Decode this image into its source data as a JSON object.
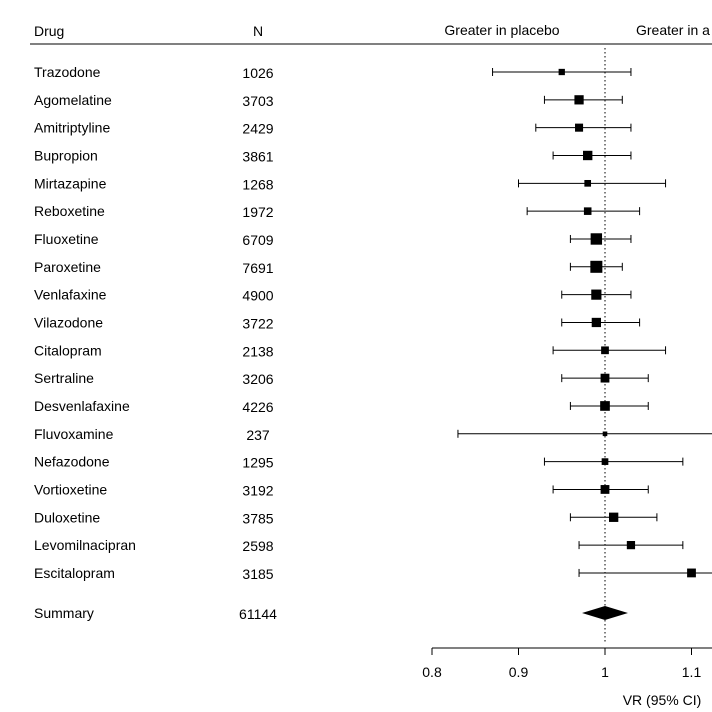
{
  "chart_data": {
    "type": "forest",
    "columns": {
      "drug": "Drug",
      "n": "N"
    },
    "directions": {
      "left": "Greater in placebo",
      "right": "Greater in a"
    },
    "xlabel": "VR (95% CI)",
    "xlim": [
      0.8,
      1.1
    ],
    "xticks": [
      0.8,
      0.9,
      1,
      1.1
    ],
    "reference_line": 1,
    "rows": [
      {
        "drug": "Trazodone",
        "n": "1026",
        "est": 0.95,
        "lo": 0.87,
        "hi": 1.03
      },
      {
        "drug": "Agomelatine",
        "n": "3703",
        "est": 0.97,
        "lo": 0.93,
        "hi": 1.02
      },
      {
        "drug": "Amitriptyline",
        "n": "2429",
        "est": 0.97,
        "lo": 0.92,
        "hi": 1.03
      },
      {
        "drug": "Bupropion",
        "n": "3861",
        "est": 0.98,
        "lo": 0.94,
        "hi": 1.03
      },
      {
        "drug": "Mirtazapine",
        "n": "1268",
        "est": 0.98,
        "lo": 0.9,
        "hi": 1.07
      },
      {
        "drug": "Reboxetine",
        "n": "1972",
        "est": 0.98,
        "lo": 0.91,
        "hi": 1.04
      },
      {
        "drug": "Fluoxetine",
        "n": "6709",
        "est": 0.99,
        "lo": 0.96,
        "hi": 1.03
      },
      {
        "drug": "Paroxetine",
        "n": "7691",
        "est": 0.99,
        "lo": 0.96,
        "hi": 1.02
      },
      {
        "drug": "Venlafaxine",
        "n": "4900",
        "est": 0.99,
        "lo": 0.95,
        "hi": 1.03
      },
      {
        "drug": "Vilazodone",
        "n": "3722",
        "est": 0.99,
        "lo": 0.95,
        "hi": 1.04
      },
      {
        "drug": "Citalopram",
        "n": "2138",
        "est": 1.0,
        "lo": 0.94,
        "hi": 1.07
      },
      {
        "drug": "Sertraline",
        "n": "3206",
        "est": 1.0,
        "lo": 0.95,
        "hi": 1.05
      },
      {
        "drug": "Desvenlafaxine",
        "n": "4226",
        "est": 1.0,
        "lo": 0.96,
        "hi": 1.05
      },
      {
        "drug": "Fluvoxamine",
        "n": "237",
        "est": 1.0,
        "lo": 0.83,
        "hi": 1.15
      },
      {
        "drug": "Nefazodone",
        "n": "1295",
        "est": 1.0,
        "lo": 0.93,
        "hi": 1.09
      },
      {
        "drug": "Vortioxetine",
        "n": "3192",
        "est": 1.0,
        "lo": 0.94,
        "hi": 1.05
      },
      {
        "drug": "Duloxetine",
        "n": "3785",
        "est": 1.01,
        "lo": 0.96,
        "hi": 1.06
      },
      {
        "drug": "Levomilnacipran",
        "n": "2598",
        "est": 1.03,
        "lo": 0.97,
        "hi": 1.09
      },
      {
        "drug": "Escitalopram",
        "n": "3185",
        "est": 1.1,
        "lo": 0.97,
        "hi": 1.15
      }
    ],
    "summary": {
      "drug": "Summary",
      "n": "61144",
      "est": 1.0,
      "lo": 0.985,
      "hi": 1.015
    }
  }
}
